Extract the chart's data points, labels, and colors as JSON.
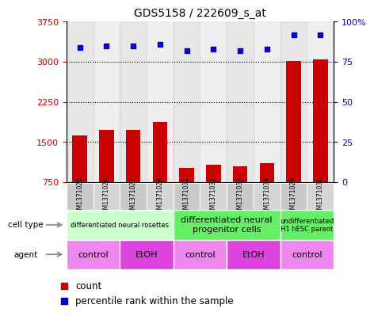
{
  "title": "GDS5158 / 222609_s_at",
  "samples": [
    "GSM1371025",
    "GSM1371026",
    "GSM1371027",
    "GSM1371028",
    "GSM1371031",
    "GSM1371032",
    "GSM1371033",
    "GSM1371034",
    "GSM1371029",
    "GSM1371030"
  ],
  "counts": [
    1620,
    1720,
    1720,
    1870,
    1010,
    1080,
    1040,
    1100,
    3020,
    3040
  ],
  "percentiles": [
    84,
    85,
    85,
    86,
    82,
    83,
    82,
    83,
    92,
    92
  ],
  "bar_color": "#cc0000",
  "dot_color": "#0000cc",
  "ymin": 750,
  "ymax": 3750,
  "yticks": [
    750,
    1500,
    2250,
    3000,
    3750
  ],
  "y2ticks": [
    0,
    25,
    50,
    75,
    100
  ],
  "y2labels": [
    "0",
    "25",
    "50",
    "75",
    "100%"
  ],
  "cell_type_groups": [
    {
      "label": "differentiated neural rosettes",
      "start": 0,
      "end": 3,
      "color": "#ccffcc",
      "fontsize": 6
    },
    {
      "label": "differentiated neural\nprogenitor cells",
      "start": 4,
      "end": 7,
      "color": "#66ee66",
      "fontsize": 8
    },
    {
      "label": "undifferentiated\nH1 hESC parent",
      "start": 8,
      "end": 9,
      "color": "#66ee66",
      "fontsize": 6
    }
  ],
  "agent_groups": [
    {
      "label": "control",
      "start": 0,
      "end": 1,
      "color": "#ee88ee"
    },
    {
      "label": "EtOH",
      "start": 2,
      "end": 3,
      "color": "#dd44dd"
    },
    {
      "label": "control",
      "start": 4,
      "end": 5,
      "color": "#ee88ee"
    },
    {
      "label": "EtOH",
      "start": 6,
      "end": 7,
      "color": "#dd44dd"
    },
    {
      "label": "control",
      "start": 8,
      "end": 9,
      "color": "#ee88ee"
    }
  ],
  "cell_type_label": "cell type",
  "agent_label": "agent",
  "legend_count_color": "#cc0000",
  "legend_pct_color": "#0000cc",
  "legend_count_text": "count",
  "legend_pct_text": "percentile rank within the sample",
  "sample_colors": [
    "#cccccc",
    "#bbbbbb",
    "#cccccc",
    "#bbbbbb",
    "#cccccc",
    "#bbbbbb",
    "#cccccc",
    "#bbbbbb",
    "#cccccc",
    "#bbbbbb"
  ]
}
